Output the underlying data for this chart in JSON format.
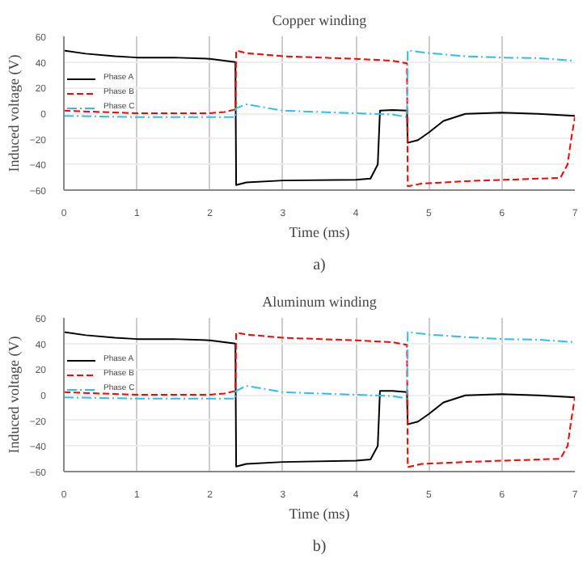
{
  "chart_data": [
    {
      "type": "line",
      "title": "Copper winding",
      "xlabel": "Time (ms)",
      "ylabel": "Induced voltage (V)",
      "annotations": [
        "a)"
      ],
      "xlim": [
        0,
        7
      ],
      "ylim": [
        -60,
        60
      ],
      "xticks": [
        0,
        1,
        2,
        3,
        4,
        5,
        6,
        7
      ],
      "yticks": [
        -60,
        -40,
        -20,
        0,
        20,
        40,
        60
      ],
      "grid": true,
      "legend": "left",
      "marker": "none",
      "series": [
        {
          "name": "Phase A",
          "color": "#000000",
          "line_style": "solid",
          "x": [
            0,
            0.3,
            0.7,
            1,
            1.5,
            2,
            2.35,
            2.36,
            2.5,
            3,
            4,
            4.2,
            4.3,
            4.33,
            4.5,
            4.7,
            4.71,
            4.85,
            5,
            5.2,
            5.5,
            6,
            6.5,
            7
          ],
          "values": [
            49,
            46.5,
            44.5,
            43.5,
            43.5,
            42.5,
            40,
            -56,
            -54,
            -52.5,
            -52,
            -51,
            -40,
            2,
            2.5,
            2,
            -23,
            -21,
            -15,
            -6,
            -0.5,
            0.5,
            -0.5,
            -2
          ]
        },
        {
          "name": "Phase B",
          "color": "#ff0000",
          "line_style": "dashed",
          "x": [
            0,
            0.5,
            1,
            2,
            2.2,
            2.35,
            2.36,
            2.5,
            3,
            4,
            4.5,
            4.7,
            4.71,
            4.9,
            5.5,
            6,
            6.8,
            6.9,
            6.95,
            7
          ],
          "values": [
            2,
            1,
            0,
            0,
            1,
            3,
            49,
            47,
            44.5,
            42.5,
            41,
            39,
            -57,
            -55,
            -53,
            -52,
            -50.5,
            -40,
            -20,
            -3
          ]
        },
        {
          "name": "Phase C",
          "color": "#33bbee",
          "line_style": "dashdot",
          "x": [
            0,
            1,
            2,
            2.35,
            2.36,
            2.5,
            2.7,
            3,
            3.5,
            4,
            4.5,
            4.7,
            4.71,
            5,
            5.5,
            6,
            6.5,
            7
          ],
          "values": [
            -2,
            -3,
            -3,
            -3,
            4,
            7,
            5,
            2,
            1,
            0,
            -1,
            -3,
            49,
            47,
            44.5,
            43.5,
            43,
            41
          ]
        }
      ]
    },
    {
      "type": "line",
      "title": "Aluminum winding",
      "xlabel": "Time (ms)",
      "ylabel": "Induced voltage (V)",
      "annotations": [
        "b)"
      ],
      "xlim": [
        0,
        7
      ],
      "ylim": [
        -60,
        60
      ],
      "xticks": [
        0,
        1,
        2,
        3,
        4,
        5,
        6,
        7
      ],
      "yticks": [
        -60,
        -40,
        -20,
        0,
        20,
        40,
        60
      ],
      "grid": true,
      "legend": "left",
      "marker": "none",
      "series": [
        {
          "name": "Phase A",
          "color": "#000000",
          "line_style": "solid",
          "x": [
            0,
            0.3,
            0.7,
            1,
            1.5,
            2,
            2.35,
            2.36,
            2.5,
            3,
            4,
            4.2,
            4.3,
            4.33,
            4.5,
            4.7,
            4.71,
            4.85,
            5,
            5.2,
            5.5,
            6,
            6.5,
            7
          ],
          "values": [
            49,
            46.5,
            44.5,
            43.5,
            43.5,
            42.5,
            40,
            -56,
            -54,
            -52.5,
            -51.5,
            -50.5,
            -40,
            3,
            3,
            2,
            -23,
            -21,
            -15,
            -6,
            -0.5,
            0.5,
            -0.5,
            -2
          ]
        },
        {
          "name": "Phase B",
          "color": "#ff0000",
          "line_style": "dashed",
          "x": [
            0,
            0.5,
            1,
            2,
            2.2,
            2.35,
            2.36,
            2.5,
            3,
            4,
            4.5,
            4.7,
            4.71,
            4.9,
            5.5,
            6,
            6.8,
            6.9,
            6.95,
            7
          ],
          "values": [
            2,
            1,
            0,
            0,
            1,
            3,
            48.5,
            47,
            44.5,
            42.5,
            41,
            39,
            -56.5,
            -54,
            -52.5,
            -51.5,
            -50,
            -40,
            -20,
            -2
          ]
        },
        {
          "name": "Phase C",
          "color": "#33bbee",
          "line_style": "dashdot",
          "x": [
            0,
            1,
            2,
            2.35,
            2.36,
            2.5,
            2.7,
            3,
            3.5,
            4,
            4.5,
            4.7,
            4.71,
            5,
            5.5,
            6,
            6.5,
            7
          ],
          "values": [
            -2,
            -3,
            -3,
            -3,
            3,
            7,
            5,
            2,
            1,
            0,
            -1,
            -3,
            49,
            47,
            45,
            43.5,
            43,
            41
          ]
        }
      ]
    }
  ]
}
